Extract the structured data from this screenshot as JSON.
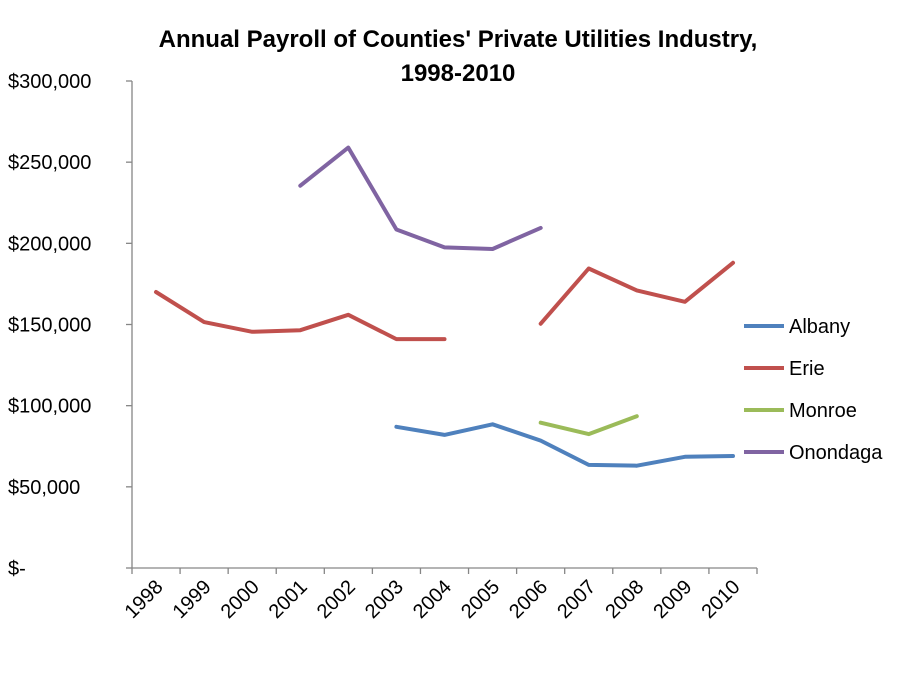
{
  "chart_data": {
    "type": "line",
    "title_line1": "Annual Payroll of Counties' Private Utilities Industry,",
    "title_line2": "1998-2010",
    "xlabel": "",
    "ylabel": "",
    "categories": [
      "1998",
      "1999",
      "2000",
      "2001",
      "2002",
      "2003",
      "2004",
      "2005",
      "2006",
      "2007",
      "2008",
      "2009",
      "2010"
    ],
    "ylim": [
      0,
      300000
    ],
    "y_ticks": [
      0,
      50000,
      100000,
      150000,
      200000,
      250000,
      300000
    ],
    "y_tick_labels": [
      "$-",
      "$50,000",
      "$100,000",
      "$150,000",
      "$200,000",
      "$250,000",
      "$300,000"
    ],
    "grid": false,
    "legend_position": "right",
    "series": [
      {
        "name": "Albany",
        "color": "#4F81BD",
        "values": [
          null,
          null,
          null,
          null,
          null,
          87000,
          82000,
          88500,
          78500,
          63500,
          63000,
          68500,
          69000
        ]
      },
      {
        "name": "Erie",
        "color": "#C0504D",
        "values": [
          170000,
          151500,
          145500,
          146500,
          156000,
          141000,
          141000,
          null,
          150500,
          184500,
          171000,
          164000,
          188000
        ]
      },
      {
        "name": "Monroe",
        "color": "#9BBB59",
        "values": [
          null,
          null,
          null,
          null,
          null,
          null,
          null,
          null,
          89500,
          82500,
          93500,
          null,
          null
        ]
      },
      {
        "name": "Onondaga",
        "color": "#8064A2",
        "values": [
          null,
          null,
          null,
          235500,
          259000,
          208500,
          197500,
          196500,
          209500,
          null,
          null,
          null,
          null
        ]
      }
    ]
  }
}
